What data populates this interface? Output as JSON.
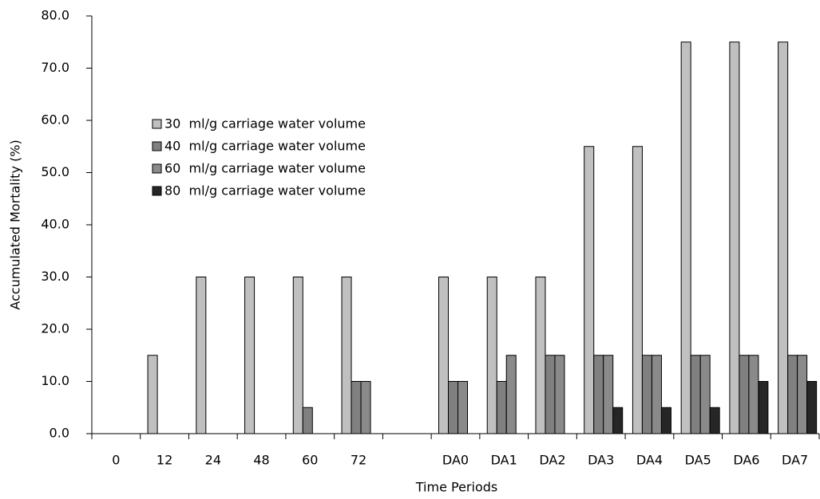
{
  "chart_data": {
    "type": "bar",
    "x_label": "Time Periods",
    "y_label": "Accumulated Mortality (%)",
    "categories": [
      "0",
      "12",
      "24",
      "48",
      "60",
      "72",
      null,
      "DA0",
      "DA1",
      "DA2",
      "DA3",
      "DA4",
      "DA5",
      "DA6",
      "DA7"
    ],
    "series": [
      {
        "name": "30  ml/g carriage water volume",
        "color": "#c0c0c0",
        "values": [
          0,
          15,
          30,
          30,
          30,
          30,
          null,
          30,
          30,
          30,
          55,
          55,
          75,
          75,
          75
        ]
      },
      {
        "name": "40  ml/g carriage water volume",
        "color": "#808080",
        "values": [
          0,
          0,
          0,
          0,
          5,
          10,
          null,
          10,
          10,
          15,
          15,
          15,
          15,
          15,
          15
        ]
      },
      {
        "name": "60  ml/g carriage water volume",
        "color": "#8a8a8a",
        "values": [
          0,
          0,
          0,
          0,
          0,
          10,
          null,
          10,
          15,
          15,
          15,
          15,
          15,
          15,
          15
        ]
      },
      {
        "name": "80  ml/g carriage water volume",
        "color": "#262626",
        "values": [
          0,
          0,
          0,
          0,
          0,
          0,
          null,
          0,
          0,
          0,
          5,
          5,
          5,
          10,
          10
        ]
      }
    ],
    "ylim": [
      0,
      80
    ],
    "yticks": [
      {
        "value": 0,
        "label": "0.0"
      },
      {
        "value": 10,
        "label": "10.0"
      },
      {
        "value": 20,
        "label": "20.0"
      },
      {
        "value": 30,
        "label": "30.0"
      },
      {
        "value": 40,
        "label": "40.0"
      },
      {
        "value": 50,
        "label": "50.0"
      },
      {
        "value": 60,
        "label": "60.0"
      },
      {
        "value": 70,
        "label": "70.0"
      },
      {
        "value": 80,
        "label": "80.0"
      }
    ],
    "grid": false,
    "legend": "upper left"
  }
}
